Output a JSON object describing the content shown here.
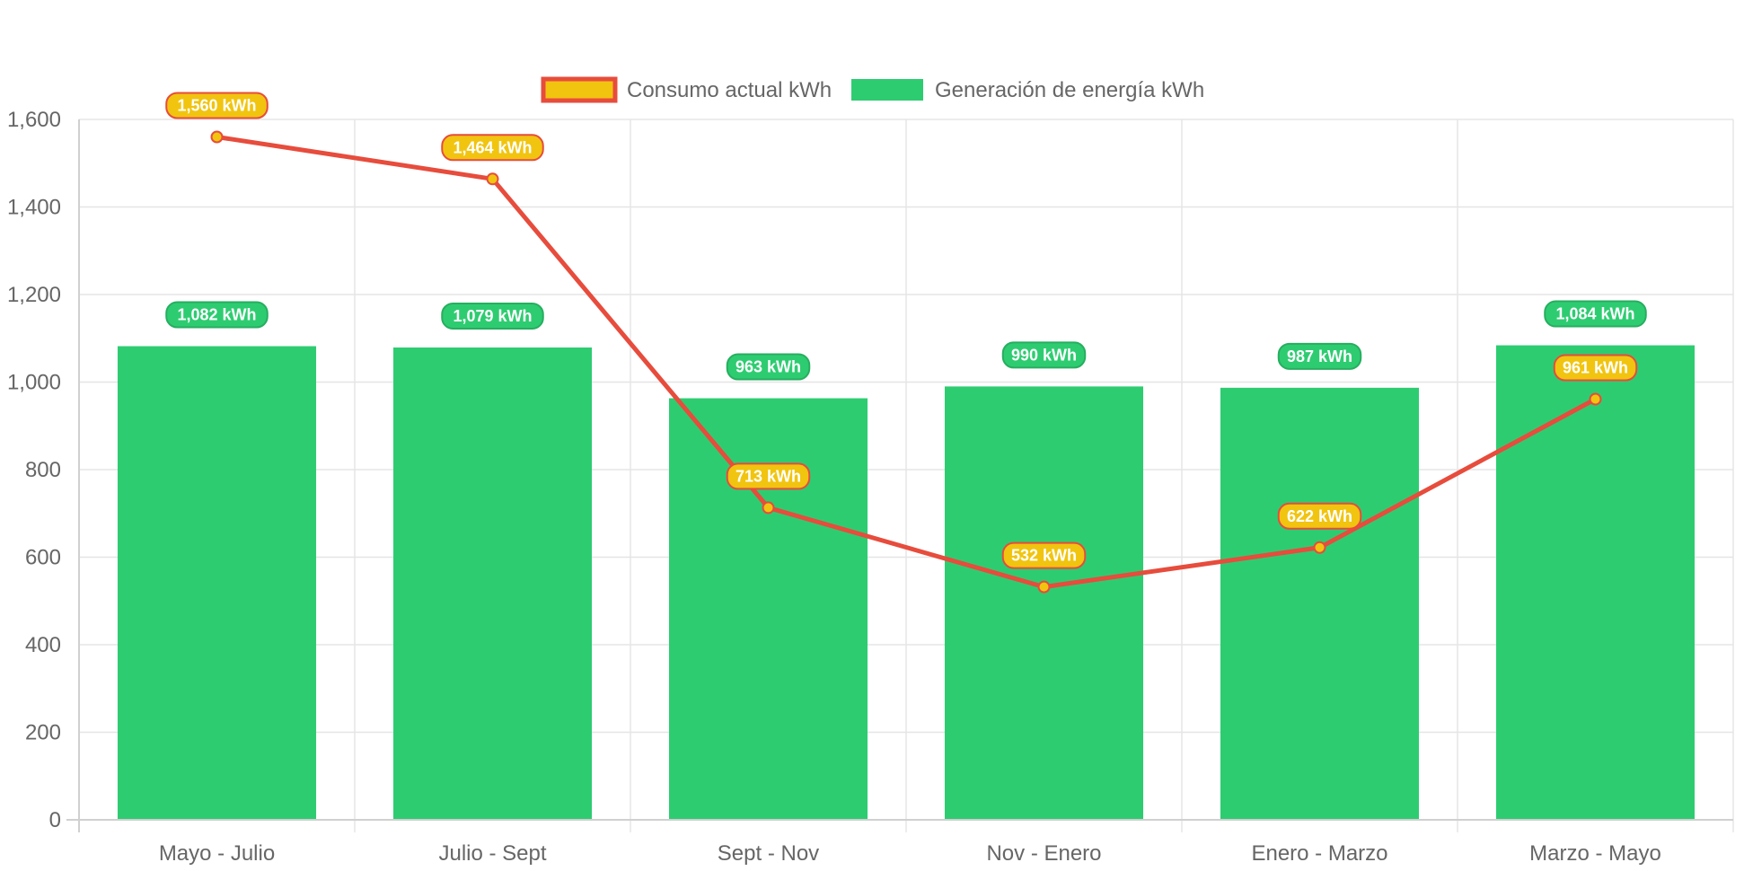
{
  "chart_data": {
    "type": "bar",
    "categories": [
      "Mayo - Julio",
      "Julio - Sept",
      "Sept - Nov",
      "Nov - Enero",
      "Enero - Marzo",
      "Marzo - Mayo"
    ],
    "series": [
      {
        "name": "Consumo actual kWh",
        "type": "line",
        "values": [
          1560,
          1464,
          713,
          532,
          622,
          961
        ],
        "labels": [
          "1,560 kWh",
          "1,464 kWh",
          "713 kWh",
          "532 kWh",
          "622 kWh",
          "961 kWh"
        ],
        "color": "#e74c3c",
        "fill": "#f1c40f"
      },
      {
        "name": "Generación de energía kWh",
        "type": "bar",
        "values": [
          1082,
          1079,
          963,
          990,
          987,
          1084
        ],
        "labels": [
          "1,082 kWh",
          "1,079 kWh",
          "963 kWh",
          "990 kWh",
          "987 kWh",
          "1,084 kWh"
        ],
        "color": "#2ecc71"
      }
    ],
    "y_ticks": [
      "0",
      "200",
      "400",
      "600",
      "800",
      "1,000",
      "1,200",
      "1,400",
      "1,600"
    ],
    "ylim": [
      0,
      1600
    ],
    "legend_position": "top",
    "grid": true,
    "gridColor": "#e5e5e5",
    "axisColor": "#d0d0d0"
  }
}
